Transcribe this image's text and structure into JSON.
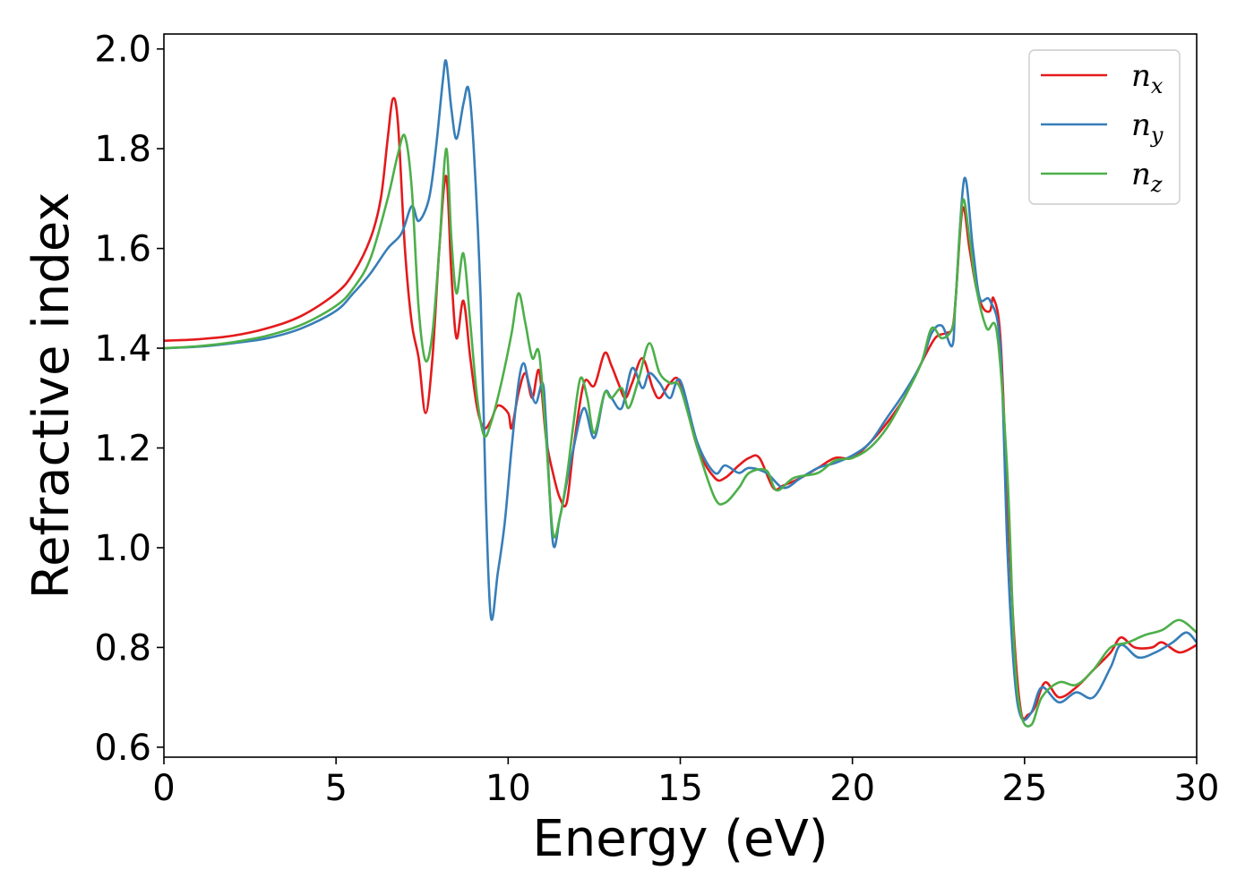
{
  "chart_data": {
    "type": "line",
    "title": "",
    "xlabel": "Energy (eV)",
    "ylabel": "Refractive index",
    "xlim": [
      0,
      30
    ],
    "ylim": [
      0.58,
      2.03
    ],
    "xticks": [
      0,
      5,
      10,
      15,
      20,
      25,
      30
    ],
    "yticks": [
      0.6,
      0.8,
      1.0,
      1.2,
      1.4,
      1.6,
      1.8,
      2.0
    ],
    "xtick_labels": [
      "0",
      "5",
      "10",
      "15",
      "20",
      "25",
      "30"
    ],
    "ytick_labels": [
      "0.6",
      "0.8",
      "1.0",
      "1.2",
      "1.4",
      "1.6",
      "1.8",
      "2.0"
    ],
    "grid": false,
    "legend_position": "top-right",
    "series": [
      {
        "name": "n_x",
        "legend_base": "n",
        "legend_sub": "x",
        "color": "#e41a1c",
        "points": [
          [
            0,
            1.415
          ],
          [
            1,
            1.418
          ],
          [
            2,
            1.425
          ],
          [
            3,
            1.44
          ],
          [
            4,
            1.465
          ],
          [
            5,
            1.51
          ],
          [
            5.5,
            1.55
          ],
          [
            6,
            1.62
          ],
          [
            6.3,
            1.7
          ],
          [
            6.5,
            1.82
          ],
          [
            6.65,
            1.9
          ],
          [
            6.8,
            1.85
          ],
          [
            7.0,
            1.6
          ],
          [
            7.2,
            1.45
          ],
          [
            7.4,
            1.38
          ],
          [
            7.6,
            1.27
          ],
          [
            7.8,
            1.38
          ],
          [
            8.0,
            1.6
          ],
          [
            8.2,
            1.745
          ],
          [
            8.35,
            1.55
          ],
          [
            8.5,
            1.42
          ],
          [
            8.7,
            1.495
          ],
          [
            8.9,
            1.38
          ],
          [
            9.1,
            1.28
          ],
          [
            9.3,
            1.24
          ],
          [
            9.5,
            1.255
          ],
          [
            9.7,
            1.285
          ],
          [
            10.0,
            1.27
          ],
          [
            10.1,
            1.24
          ],
          [
            10.3,
            1.31
          ],
          [
            10.5,
            1.35
          ],
          [
            10.7,
            1.3
          ],
          [
            10.9,
            1.355
          ],
          [
            11.1,
            1.22
          ],
          [
            11.3,
            1.15
          ],
          [
            11.5,
            1.1
          ],
          [
            11.7,
            1.09
          ],
          [
            11.9,
            1.2
          ],
          [
            12.2,
            1.33
          ],
          [
            12.5,
            1.325
          ],
          [
            12.8,
            1.39
          ],
          [
            13.0,
            1.365
          ],
          [
            13.2,
            1.33
          ],
          [
            13.4,
            1.3
          ],
          [
            13.6,
            1.33
          ],
          [
            13.9,
            1.38
          ],
          [
            14.2,
            1.32
          ],
          [
            14.4,
            1.3
          ],
          [
            14.7,
            1.33
          ],
          [
            15.0,
            1.33
          ],
          [
            15.5,
            1.2
          ],
          [
            16.0,
            1.14
          ],
          [
            16.3,
            1.14
          ],
          [
            16.7,
            1.165
          ],
          [
            17.0,
            1.18
          ],
          [
            17.3,
            1.18
          ],
          [
            17.7,
            1.12
          ],
          [
            18.0,
            1.125
          ],
          [
            18.5,
            1.14
          ],
          [
            19.0,
            1.16
          ],
          [
            19.5,
            1.18
          ],
          [
            20.0,
            1.18
          ],
          [
            20.5,
            1.21
          ],
          [
            21.0,
            1.25
          ],
          [
            21.5,
            1.3
          ],
          [
            22.0,
            1.37
          ],
          [
            22.4,
            1.42
          ],
          [
            22.7,
            1.43
          ],
          [
            22.9,
            1.44
          ],
          [
            23.0,
            1.5
          ],
          [
            23.2,
            1.68
          ],
          [
            23.4,
            1.6
          ],
          [
            23.6,
            1.52
          ],
          [
            23.8,
            1.48
          ],
          [
            24.0,
            1.475
          ],
          [
            24.1,
            1.5
          ],
          [
            24.3,
            1.42
          ],
          [
            24.5,
            1.1
          ],
          [
            24.7,
            0.82
          ],
          [
            24.9,
            0.67
          ],
          [
            25.1,
            0.665
          ],
          [
            25.3,
            0.68
          ],
          [
            25.6,
            0.73
          ],
          [
            26.0,
            0.7
          ],
          [
            26.5,
            0.72
          ],
          [
            27.0,
            0.755
          ],
          [
            27.5,
            0.79
          ],
          [
            27.8,
            0.82
          ],
          [
            28.2,
            0.8
          ],
          [
            28.7,
            0.8
          ],
          [
            29.0,
            0.81
          ],
          [
            29.5,
            0.79
          ],
          [
            30.0,
            0.805
          ]
        ]
      },
      {
        "name": "n_y",
        "legend_base": "n",
        "legend_sub": "y",
        "color": "#377eb8",
        "points": [
          [
            0,
            1.4
          ],
          [
            1,
            1.403
          ],
          [
            2,
            1.41
          ],
          [
            3,
            1.42
          ],
          [
            4,
            1.44
          ],
          [
            5,
            1.475
          ],
          [
            5.5,
            1.51
          ],
          [
            6,
            1.55
          ],
          [
            6.5,
            1.6
          ],
          [
            6.9,
            1.63
          ],
          [
            7.2,
            1.685
          ],
          [
            7.4,
            1.655
          ],
          [
            7.7,
            1.7
          ],
          [
            7.9,
            1.8
          ],
          [
            8.1,
            1.935
          ],
          [
            8.2,
            1.975
          ],
          [
            8.35,
            1.88
          ],
          [
            8.5,
            1.82
          ],
          [
            8.7,
            1.89
          ],
          [
            8.85,
            1.92
          ],
          [
            9.0,
            1.8
          ],
          [
            9.2,
            1.5
          ],
          [
            9.35,
            1.1
          ],
          [
            9.5,
            0.86
          ],
          [
            9.7,
            0.95
          ],
          [
            9.9,
            1.05
          ],
          [
            10.1,
            1.2
          ],
          [
            10.3,
            1.33
          ],
          [
            10.45,
            1.37
          ],
          [
            10.6,
            1.33
          ],
          [
            10.8,
            1.29
          ],
          [
            11.0,
            1.33
          ],
          [
            11.1,
            1.25
          ],
          [
            11.3,
            1.01
          ],
          [
            11.5,
            1.06
          ],
          [
            11.7,
            1.13
          ],
          [
            11.9,
            1.2
          ],
          [
            12.2,
            1.28
          ],
          [
            12.5,
            1.22
          ],
          [
            12.8,
            1.31
          ],
          [
            13.0,
            1.3
          ],
          [
            13.3,
            1.28
          ],
          [
            13.6,
            1.36
          ],
          [
            13.9,
            1.32
          ],
          [
            14.1,
            1.35
          ],
          [
            14.4,
            1.33
          ],
          [
            14.7,
            1.3
          ],
          [
            15.0,
            1.335
          ],
          [
            15.5,
            1.21
          ],
          [
            16.0,
            1.15
          ],
          [
            16.3,
            1.165
          ],
          [
            16.7,
            1.15
          ],
          [
            17.0,
            1.16
          ],
          [
            17.5,
            1.15
          ],
          [
            18.0,
            1.12
          ],
          [
            18.5,
            1.14
          ],
          [
            19.0,
            1.16
          ],
          [
            19.5,
            1.17
          ],
          [
            20.0,
            1.185
          ],
          [
            20.5,
            1.21
          ],
          [
            21.0,
            1.26
          ],
          [
            21.5,
            1.31
          ],
          [
            22.0,
            1.37
          ],
          [
            22.3,
            1.43
          ],
          [
            22.6,
            1.445
          ],
          [
            22.9,
            1.405
          ],
          [
            23.0,
            1.5
          ],
          [
            23.25,
            1.74
          ],
          [
            23.5,
            1.6
          ],
          [
            23.7,
            1.5
          ],
          [
            24.0,
            1.495
          ],
          [
            24.3,
            1.4
          ],
          [
            24.5,
            1.0
          ],
          [
            24.7,
            0.75
          ],
          [
            24.9,
            0.66
          ],
          [
            25.2,
            0.67
          ],
          [
            25.5,
            0.72
          ],
          [
            26.0,
            0.69
          ],
          [
            26.5,
            0.71
          ],
          [
            27.0,
            0.7
          ],
          [
            27.5,
            0.76
          ],
          [
            27.8,
            0.805
          ],
          [
            28.3,
            0.78
          ],
          [
            28.8,
            0.79
          ],
          [
            29.3,
            0.81
          ],
          [
            29.7,
            0.83
          ],
          [
            30.0,
            0.81
          ]
        ]
      },
      {
        "name": "n_z",
        "legend_base": "n",
        "legend_sub": "z",
        "color": "#4daf4a",
        "points": [
          [
            0,
            1.4
          ],
          [
            1,
            1.404
          ],
          [
            2,
            1.412
          ],
          [
            3,
            1.425
          ],
          [
            4,
            1.447
          ],
          [
            5,
            1.485
          ],
          [
            5.5,
            1.52
          ],
          [
            6,
            1.58
          ],
          [
            6.5,
            1.7
          ],
          [
            6.8,
            1.79
          ],
          [
            7.0,
            1.825
          ],
          [
            7.2,
            1.72
          ],
          [
            7.4,
            1.48
          ],
          [
            7.6,
            1.375
          ],
          [
            7.8,
            1.43
          ],
          [
            8.0,
            1.6
          ],
          [
            8.2,
            1.8
          ],
          [
            8.35,
            1.62
          ],
          [
            8.5,
            1.51
          ],
          [
            8.7,
            1.59
          ],
          [
            8.9,
            1.45
          ],
          [
            9.1,
            1.3
          ],
          [
            9.3,
            1.225
          ],
          [
            9.5,
            1.25
          ],
          [
            9.8,
            1.33
          ],
          [
            10.1,
            1.43
          ],
          [
            10.3,
            1.51
          ],
          [
            10.5,
            1.45
          ],
          [
            10.7,
            1.38
          ],
          [
            10.9,
            1.39
          ],
          [
            11.1,
            1.22
          ],
          [
            11.3,
            1.03
          ],
          [
            11.5,
            1.06
          ],
          [
            11.7,
            1.14
          ],
          [
            11.9,
            1.25
          ],
          [
            12.1,
            1.34
          ],
          [
            12.3,
            1.3
          ],
          [
            12.5,
            1.23
          ],
          [
            12.8,
            1.31
          ],
          [
            13.0,
            1.3
          ],
          [
            13.3,
            1.32
          ],
          [
            13.5,
            1.28
          ],
          [
            13.8,
            1.34
          ],
          [
            14.1,
            1.41
          ],
          [
            14.4,
            1.35
          ],
          [
            14.7,
            1.33
          ],
          [
            15.0,
            1.32
          ],
          [
            15.5,
            1.2
          ],
          [
            16.0,
            1.1
          ],
          [
            16.3,
            1.09
          ],
          [
            16.7,
            1.12
          ],
          [
            17.0,
            1.15
          ],
          [
            17.5,
            1.155
          ],
          [
            17.8,
            1.115
          ],
          [
            18.3,
            1.14
          ],
          [
            19.0,
            1.15
          ],
          [
            19.5,
            1.175
          ],
          [
            20.0,
            1.18
          ],
          [
            20.5,
            1.2
          ],
          [
            21.0,
            1.24
          ],
          [
            21.5,
            1.3
          ],
          [
            22.0,
            1.37
          ],
          [
            22.3,
            1.44
          ],
          [
            22.6,
            1.42
          ],
          [
            22.9,
            1.44
          ],
          [
            23.0,
            1.5
          ],
          [
            23.2,
            1.695
          ],
          [
            23.4,
            1.62
          ],
          [
            23.6,
            1.52
          ],
          [
            23.9,
            1.44
          ],
          [
            24.2,
            1.43
          ],
          [
            24.5,
            1.15
          ],
          [
            24.7,
            0.8
          ],
          [
            24.9,
            0.665
          ],
          [
            25.2,
            0.645
          ],
          [
            25.5,
            0.7
          ],
          [
            26.0,
            0.73
          ],
          [
            26.5,
            0.725
          ],
          [
            27.0,
            0.755
          ],
          [
            27.5,
            0.8
          ],
          [
            28.0,
            0.81
          ],
          [
            28.5,
            0.825
          ],
          [
            29.0,
            0.835
          ],
          [
            29.5,
            0.855
          ],
          [
            30.0,
            0.83
          ]
        ]
      }
    ]
  }
}
